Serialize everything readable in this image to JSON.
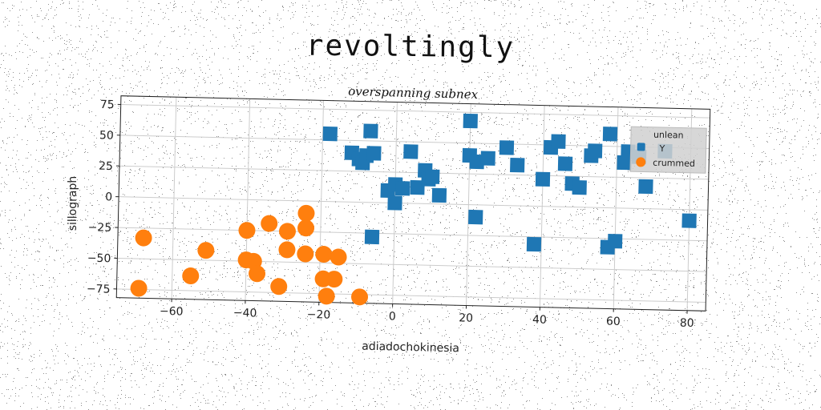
{
  "header": {
    "title": "revoltingly"
  },
  "colors": {
    "series1": "#1f77b4",
    "series2": "#ff7f0e",
    "grid": "#cccccc"
  },
  "chart_data": {
    "type": "scatter",
    "title": "overspanning subnex",
    "xlabel": "adiadochokinesia",
    "ylabel": "sillograph",
    "xlim": [
      -75,
      85
    ],
    "ylim": [
      -82,
      82
    ],
    "xticks": [
      -60,
      -40,
      -20,
      0,
      20,
      40,
      60,
      80
    ],
    "yticks": [
      -75,
      -50,
      -25,
      0,
      25,
      50,
      75
    ],
    "grid": true,
    "legend": {
      "title": "unlean",
      "placement": "top-right"
    },
    "series": [
      {
        "name": "Y",
        "marker": "square",
        "color": "#1f77b4",
        "points": [
          [
            -18,
            55
          ],
          [
            -12,
            40
          ],
          [
            -10,
            35
          ],
          [
            -9,
            32
          ],
          [
            -8,
            38
          ],
          [
            -7,
            58
          ],
          [
            -6,
            40
          ],
          [
            -2,
            10
          ],
          [
            0,
            15
          ],
          [
            0,
            0
          ],
          [
            2,
            12
          ],
          [
            4,
            42
          ],
          [
            6,
            13
          ],
          [
            8,
            27
          ],
          [
            9,
            20
          ],
          [
            10,
            22
          ],
          [
            12,
            7
          ],
          [
            -6,
            -28
          ],
          [
            20,
            68
          ],
          [
            20,
            40
          ],
          [
            22,
            35
          ],
          [
            22,
            -10
          ],
          [
            25,
            38
          ],
          [
            30,
            47
          ],
          [
            33,
            33
          ],
          [
            38,
            -31
          ],
          [
            40,
            22
          ],
          [
            42,
            48
          ],
          [
            44,
            53
          ],
          [
            46,
            35
          ],
          [
            48,
            19
          ],
          [
            50,
            16
          ],
          [
            53,
            42
          ],
          [
            54,
            46
          ],
          [
            58,
            60
          ],
          [
            58,
            -32
          ],
          [
            60,
            -27
          ],
          [
            62,
            37
          ],
          [
            63,
            46
          ],
          [
            66,
            42
          ],
          [
            68,
            18
          ],
          [
            73,
            47
          ],
          [
            80,
            -9
          ]
        ]
      },
      {
        "name": "crummed",
        "marker": "circle",
        "color": "#ff7f0e",
        "points": [
          [
            -68,
            -33
          ],
          [
            -69,
            -74
          ],
          [
            -55,
            -63
          ],
          [
            -51,
            -42
          ],
          [
            -40,
            -25
          ],
          [
            -40,
            -49
          ],
          [
            -38,
            -50
          ],
          [
            -37,
            -60
          ],
          [
            -34,
            -19
          ],
          [
            -31,
            -70
          ],
          [
            -29,
            -25
          ],
          [
            -29,
            -40
          ],
          [
            -24,
            -10
          ],
          [
            -24,
            -22
          ],
          [
            -24,
            -43
          ],
          [
            -19,
            -43
          ],
          [
            -19,
            -63
          ],
          [
            -18,
            -77
          ],
          [
            -16,
            -63
          ],
          [
            -15,
            -45
          ],
          [
            -9,
            -77
          ]
        ]
      }
    ]
  }
}
